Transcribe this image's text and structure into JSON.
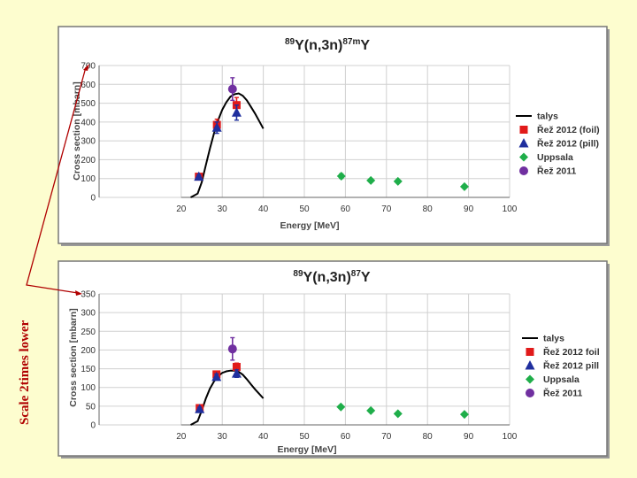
{
  "side_note": "Scale 2times lower",
  "colors": {
    "background": "#fdfdcf",
    "panel": "#ffffff",
    "talys": "#000000",
    "rez2012_foil": "#e11a1a",
    "rez2012_pill": "#1f2f9e",
    "uppsala": "#1fae4a",
    "rez2011": "#7030a0",
    "annotation": "#b00000"
  },
  "chart_data": [
    {
      "type": "scatter",
      "title_parts": [
        "89",
        "Y(n,3n)",
        "87m",
        "Y"
      ],
      "xlabel": "Energy [MeV]",
      "ylabel": "Cross section [mbarn]",
      "xlim": [
        0,
        100
      ],
      "x_axis_start": 20,
      "ylim": [
        0,
        700
      ],
      "xticks": [
        "20",
        "30",
        "40",
        "50",
        "60",
        "70",
        "80",
        "90",
        "100"
      ],
      "yticks": [
        "0",
        "100",
        "200",
        "300",
        "400",
        "500",
        "600",
        "700"
      ],
      "grid": true,
      "legend_position": "right",
      "series": [
        {
          "name": "talys",
          "kind": "line",
          "x": [
            22.3,
            24,
            25,
            26,
            27,
            28,
            29,
            30,
            31,
            32,
            33,
            34,
            35,
            36,
            37,
            38,
            39,
            40
          ],
          "y": [
            0,
            20,
            80,
            170,
            260,
            340,
            410,
            465,
            505,
            535,
            548,
            552,
            540,
            515,
            480,
            445,
            405,
            365
          ]
        },
        {
          "name": "Řež 2012 (foil)",
          "kind": "square",
          "x": [
            24.3,
            28.7,
            33.5
          ],
          "y": [
            110,
            385,
            490
          ],
          "err": [
            10,
            30,
            40
          ]
        },
        {
          "name": "Řež 2012 (pill)",
          "kind": "triangle",
          "x": [
            24.3,
            28.7,
            33.5
          ],
          "y": [
            110,
            370,
            450
          ],
          "err": [
            10,
            30,
            40
          ]
        },
        {
          "name": "Uppsala",
          "kind": "diamond",
          "x": [
            59,
            66.2,
            72.8,
            89
          ],
          "y": [
            113,
            90,
            85,
            57
          ],
          "err": [
            12,
            8,
            8,
            6
          ]
        },
        {
          "name": "Řež 2011",
          "kind": "circle",
          "x": [
            32.5
          ],
          "y": [
            575
          ],
          "err": [
            60
          ]
        }
      ]
    },
    {
      "type": "scatter",
      "title_parts": [
        "89",
        "Y(n,3n)",
        "87",
        "Y"
      ],
      "xlabel": "Energy [MeV]",
      "ylabel": "Cross section [mbarn]",
      "xlim": [
        0,
        100
      ],
      "x_axis_start": 20,
      "ylim": [
        0,
        350
      ],
      "xticks": [
        "20",
        "30",
        "40",
        "50",
        "60",
        "70",
        "80",
        "90",
        "100"
      ],
      "yticks": [
        "0",
        "50",
        "100",
        "150",
        "200",
        "250",
        "300",
        "350"
      ],
      "grid": true,
      "legend_position": "right",
      "series": [
        {
          "name": "talys",
          "kind": "line",
          "x": [
            22.3,
            24,
            25,
            26,
            27,
            28,
            29,
            30,
            31,
            32,
            33,
            34,
            35,
            36,
            37,
            38,
            39,
            40
          ],
          "y": [
            0,
            10,
            38,
            70,
            97,
            116,
            130,
            139,
            143,
            145,
            145,
            142,
            134,
            122,
            108,
            95,
            83,
            71
          ]
        },
        {
          "name": "Řež 2012 foil",
          "kind": "square",
          "x": [
            24.5,
            28.6,
            33.5
          ],
          "y": [
            45,
            135,
            155
          ],
          "err": [
            5,
            8,
            10
          ]
        },
        {
          "name": "Řež 2012 pill",
          "kind": "triangle",
          "x": [
            24.5,
            28.6,
            33.5
          ],
          "y": [
            42,
            128,
            137
          ],
          "err": [
            5,
            8,
            10
          ]
        },
        {
          "name": "Uppsala",
          "kind": "diamond",
          "x": [
            58.9,
            66.2,
            72.8,
            89
          ],
          "y": [
            48,
            38,
            30,
            28
          ],
          "err": [
            4,
            4,
            3,
            3
          ]
        },
        {
          "name": "Řež 2011",
          "kind": "circle",
          "x": [
            32.5
          ],
          "y": [
            203
          ],
          "err": [
            30
          ]
        }
      ]
    }
  ]
}
